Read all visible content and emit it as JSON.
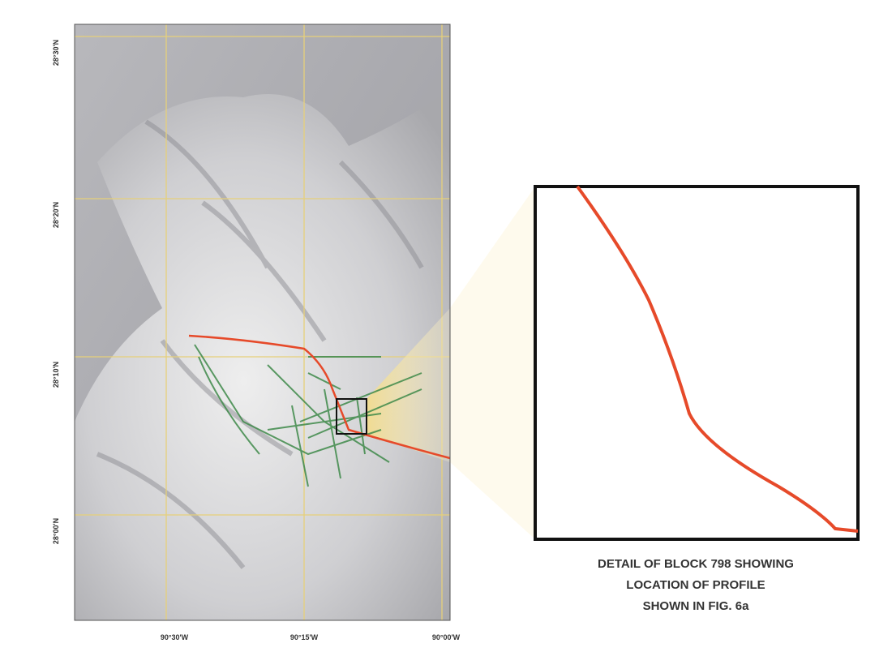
{
  "map": {
    "lat_labels": [
      "28°30'N",
      "28°20'N",
      "28°10'N",
      "28°00'N"
    ],
    "lon_labels": [
      "90°30'W",
      "90°15'W",
      "90°00'W"
    ],
    "caption": [
      "DETAIL OF BLOCK 798 SHOWING",
      "LOCATION OF PROFILE",
      "SHOWN IN FIG. 6a"
    ]
  }
}
